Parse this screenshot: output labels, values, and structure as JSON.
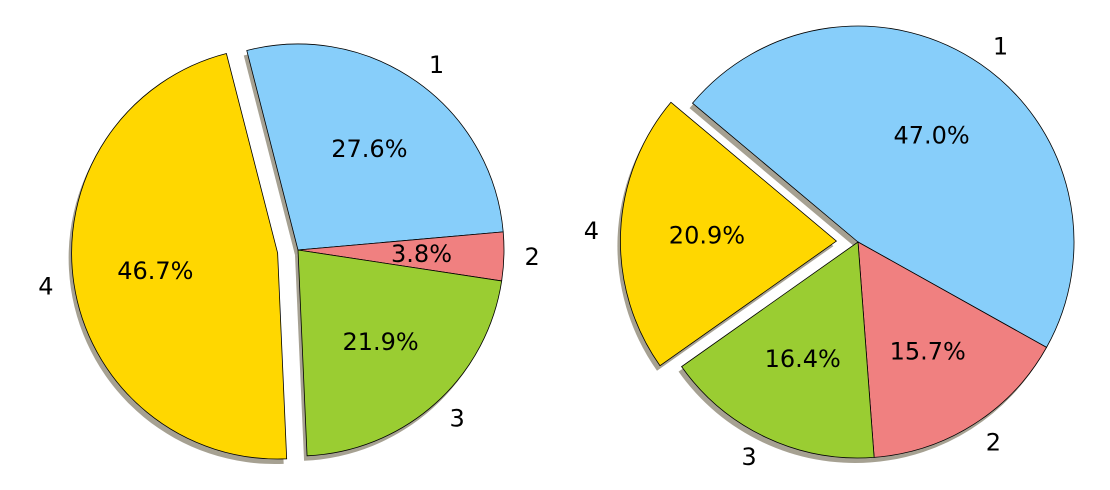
{
  "chart_data": [
    {
      "type": "pie",
      "labels": [
        "1",
        "2",
        "3",
        "4"
      ],
      "values": [
        27.6,
        3.8,
        21.9,
        46.7
      ],
      "autopct": [
        "27.6%",
        "3.8%",
        "21.9%",
        "46.7%"
      ],
      "colors": [
        "#87CEFA",
        "#F08080",
        "#9ACD32",
        "#FFD700"
      ],
      "explode": [
        0,
        0,
        0,
        0.1
      ],
      "start_angle": 104.4,
      "direction": "clockwise",
      "shadow": true
    },
    {
      "type": "pie",
      "labels": [
        "1",
        "2",
        "3",
        "4"
      ],
      "values": [
        47.0,
        15.7,
        16.4,
        20.9
      ],
      "autopct": [
        "47.0%",
        "15.7%",
        "16.4%",
        "20.9%"
      ],
      "colors": [
        "#87CEFA",
        "#F08080",
        "#9ACD32",
        "#FFD700"
      ],
      "explode": [
        0,
        0,
        0,
        0.1
      ],
      "start_angle": 140,
      "direction": "clockwise",
      "shadow": true
    }
  ]
}
